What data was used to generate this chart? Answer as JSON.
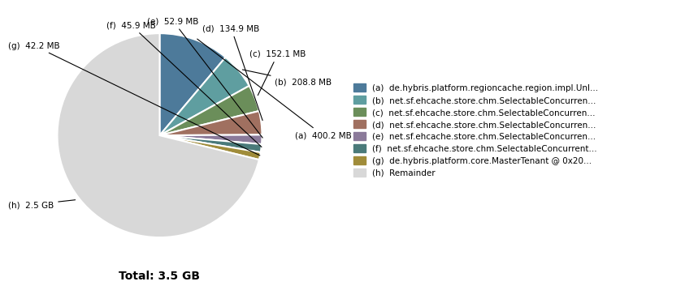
{
  "labels": [
    "(a)",
    "(b)",
    "(c)",
    "(d)",
    "(e)",
    "(f)",
    "(g)",
    "(h)"
  ],
  "values": [
    400.2,
    208.8,
    152.1,
    134.9,
    52.9,
    45.9,
    42.2,
    2560.0
  ],
  "colors": [
    "#4d7a9a",
    "#5f9ea0",
    "#6b8e5a",
    "#a07060",
    "#8b7a9a",
    "#4a7a7a",
    "#a08c3a",
    "#d8d8d8"
  ],
  "legend_labels": [
    "(a)  de.hybris.platform.regioncache.region.impl.Unl...",
    "(b)  net.sf.ehcache.store.chm.SelectableConcurren...",
    "(c)  net.sf.ehcache.store.chm.SelectableConcurren...",
    "(d)  net.sf.ehcache.store.chm.SelectableConcurren...",
    "(e)  net.sf.ehcache.store.chm.SelectableConcurren...",
    "(f)  net.sf.ehcache.store.chm.SelectableConcurrent...",
    "(g)  de.hybris.platform.core.MasterTenant @ 0x20...",
    "(h)  Remainder"
  ],
  "value_labels": [
    "400.2 MB",
    "208.8 MB",
    "152.1 MB",
    "134.9 MB",
    "52.9 MB",
    "45.9 MB",
    "42.2 MB",
    "2.5 GB"
  ],
  "title": "Total: 3.5 GB",
  "startangle": 90,
  "font_size": 7.5,
  "legend_fontsize": 7.5,
  "title_fontsize": 10
}
